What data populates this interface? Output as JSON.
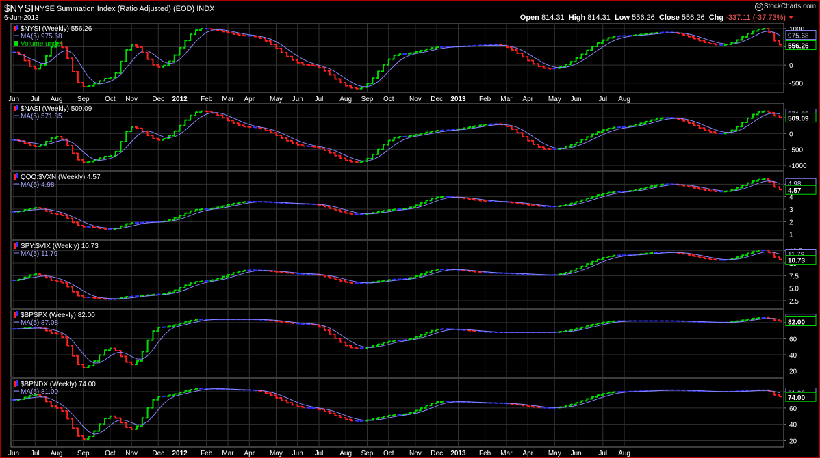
{
  "header": {
    "symbol": "$NYSI",
    "name": "NYSE Summation Index (Ratio Adjusted) (EOD)  INDX",
    "date": "6-Jun-2013",
    "open_label": "Open",
    "open": "814.31",
    "high_label": "High",
    "high": "814.31",
    "low_label": "Low",
    "low": "556.26",
    "close_label": "Close",
    "close": "556.26",
    "chg_label": "Chg",
    "chg": "-337.11 (-37.73%)",
    "chg_arrow": "▼",
    "logo": "StockCharts.com",
    "logo_mark": "©"
  },
  "colors": {
    "up": "#00dd00",
    "down": "#ff2020",
    "flat": "#3333ff",
    "ma": "#8888ff",
    "grid": "#7a7a7a",
    "border": "#b00000"
  },
  "x_axis_labels": [
    "Jun",
    "Jul",
    "Aug",
    "Sep",
    "Oct",
    "Nov",
    "Dec",
    "2012",
    "Feb",
    "Mar",
    "Apr",
    "May",
    "Jun",
    "Jul",
    "Aug",
    "Sep",
    "Oct",
    "Nov",
    "Dec",
    "2013",
    "Feb",
    "Mar",
    "Apr",
    "May",
    "Jun",
    "Jul",
    "Aug"
  ],
  "chart_data": [
    {
      "type": "line",
      "series_label": "$NYSI (Weekly) 556.26",
      "ma_label": "MA(5) 975.68",
      "extra_label": "Volume undef",
      "ylim": [
        -750,
        1150
      ],
      "yticks": [
        1000,
        500,
        0,
        -500
      ],
      "yticklabels": [
        "1000",
        "500",
        "0",
        "-500"
      ],
      "last_value": "556.26",
      "ma_value": "975.68",
      "anchors": [
        [
          0,
          350
        ],
        [
          4,
          -100
        ],
        [
          8,
          600
        ],
        [
          13,
          -600
        ],
        [
          18,
          -350
        ],
        [
          22,
          550
        ],
        [
          27,
          -50
        ],
        [
          35,
          1000
        ],
        [
          44,
          800
        ],
        [
          55,
          0
        ],
        [
          64,
          -650
        ],
        [
          72,
          300
        ],
        [
          80,
          500
        ],
        [
          90,
          550
        ],
        [
          100,
          -100
        ],
        [
          113,
          800
        ],
        [
          122,
          900
        ],
        [
          132,
          550
        ],
        [
          140,
          1000
        ],
        [
          143,
          556.26
        ]
      ]
    },
    {
      "type": "line",
      "series_label": "$NASI (Weekly) 509.09",
      "ma_label": "MA(5) 571.85",
      "ylim": [
        -1150,
        950
      ],
      "yticks": [
        500,
        0,
        -500,
        -1000
      ],
      "yticklabels": [
        "500",
        "0",
        "-500",
        "-1000"
      ],
      "last_value": "509.09",
      "ma_value": "571.85",
      "anchors": [
        [
          0,
          -200
        ],
        [
          4,
          -400
        ],
        [
          8,
          -100
        ],
        [
          13,
          -900
        ],
        [
          18,
          -700
        ],
        [
          22,
          200
        ],
        [
          27,
          -200
        ],
        [
          35,
          700
        ],
        [
          44,
          200
        ],
        [
          55,
          -400
        ],
        [
          64,
          -900
        ],
        [
          72,
          -100
        ],
        [
          80,
          100
        ],
        [
          90,
          300
        ],
        [
          100,
          -500
        ],
        [
          113,
          200
        ],
        [
          122,
          500
        ],
        [
          132,
          0
        ],
        [
          140,
          700
        ],
        [
          143,
          509.09
        ]
      ]
    },
    {
      "type": "line",
      "series_label": "QQQ:$VXN (Weekly) 4.57",
      "ma_label": "MA(5) 4.98",
      "ylim": [
        0.6,
        6.0
      ],
      "yticks": [
        5,
        4,
        3,
        2,
        1
      ],
      "yticklabels": [
        "5",
        "4",
        "3",
        "2",
        "1"
      ],
      "last_value": "4.57",
      "ma_value": "4.98",
      "anchors": [
        [
          0,
          2.8
        ],
        [
          4,
          3.1
        ],
        [
          8,
          2.6
        ],
        [
          13,
          1.6
        ],
        [
          18,
          1.4
        ],
        [
          22,
          1.9
        ],
        [
          27,
          2.0
        ],
        [
          35,
          3.0
        ],
        [
          44,
          3.6
        ],
        [
          55,
          3.4
        ],
        [
          64,
          2.6
        ],
        [
          72,
          3.0
        ],
        [
          80,
          4.0
        ],
        [
          90,
          3.6
        ],
        [
          100,
          3.2
        ],
        [
          113,
          4.4
        ],
        [
          122,
          5.0
        ],
        [
          132,
          4.4
        ],
        [
          140,
          5.4
        ],
        [
          143,
          4.57
        ]
      ]
    },
    {
      "type": "line",
      "series_label": "SPY:$VIX (Weekly) 10.73",
      "ma_label": "MA(5) 11.79",
      "ylim": [
        1.0,
        14.5
      ],
      "yticks": [
        12.5,
        10,
        7.5,
        5,
        2.5
      ],
      "yticklabels": [
        "12.5",
        "10",
        "7.5",
        "5.0",
        "2.5"
      ],
      "last_value": "10.73",
      "ma_value": "11.79",
      "anchors": [
        [
          0,
          6.6
        ],
        [
          4,
          7.8
        ],
        [
          8,
          6.4
        ],
        [
          13,
          3.2
        ],
        [
          18,
          2.8
        ],
        [
          22,
          3.4
        ],
        [
          27,
          3.8
        ],
        [
          35,
          6.4
        ],
        [
          44,
          8.6
        ],
        [
          55,
          7.8
        ],
        [
          64,
          6.0
        ],
        [
          72,
          6.8
        ],
        [
          80,
          8.8
        ],
        [
          90,
          8.0
        ],
        [
          100,
          7.6
        ],
        [
          113,
          11.6
        ],
        [
          122,
          12.2
        ],
        [
          132,
          10.6
        ],
        [
          140,
          12.6
        ],
        [
          143,
          10.73
        ]
      ]
    },
    {
      "type": "line",
      "series_label": "$BPSPX (Weekly) 82.00",
      "ma_label": "MA(5) 87.08",
      "ylim": [
        12,
        96
      ],
      "yticks": [
        80,
        60,
        40,
        20
      ],
      "yticklabels": [
        "80",
        "60",
        "40",
        "20"
      ],
      "last_value": "82.00",
      "ma_value": "87.08",
      "anchors": [
        [
          0,
          72
        ],
        [
          4,
          74
        ],
        [
          8,
          66
        ],
        [
          13,
          24
        ],
        [
          18,
          48
        ],
        [
          22,
          28
        ],
        [
          27,
          74
        ],
        [
          35,
          84
        ],
        [
          44,
          84
        ],
        [
          55,
          78
        ],
        [
          64,
          48
        ],
        [
          72,
          58
        ],
        [
          80,
          72
        ],
        [
          90,
          68
        ],
        [
          100,
          68
        ],
        [
          113,
          82
        ],
        [
          122,
          82
        ],
        [
          132,
          80
        ],
        [
          140,
          86
        ],
        [
          143,
          82
        ]
      ]
    },
    {
      "type": "line",
      "series_label": "$BPNDX (Weekly) 74.00",
      "ma_label": "MA(5) 81.00",
      "ylim": [
        12,
        96
      ],
      "yticks": [
        80,
        60,
        40,
        20
      ],
      "yticklabels": [
        "80",
        "60",
        "40",
        "20"
      ],
      "last_value": "74.00",
      "ma_value": "81.00",
      "anchors": [
        [
          0,
          70
        ],
        [
          4,
          76
        ],
        [
          8,
          60
        ],
        [
          13,
          22
        ],
        [
          18,
          50
        ],
        [
          22,
          34
        ],
        [
          27,
          74
        ],
        [
          35,
          84
        ],
        [
          44,
          82
        ],
        [
          55,
          60
        ],
        [
          64,
          44
        ],
        [
          72,
          52
        ],
        [
          80,
          68
        ],
        [
          90,
          66
        ],
        [
          100,
          60
        ],
        [
          113,
          80
        ],
        [
          122,
          82
        ],
        [
          132,
          80
        ],
        [
          140,
          82
        ],
        [
          143,
          74
        ]
      ]
    }
  ]
}
